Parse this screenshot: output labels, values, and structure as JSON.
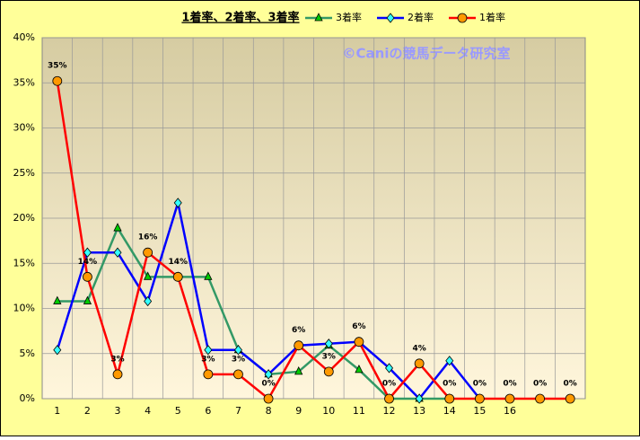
{
  "chart_data": {
    "type": "line",
    "title": "1着率、2着率、3着率",
    "watermark": "©Caniの競馬データ研究室",
    "categories": [
      "1",
      "2",
      "3",
      "4",
      "5",
      "6",
      "7",
      "8",
      "9",
      "10",
      "11",
      "12",
      "13",
      "14",
      "15",
      "16",
      null,
      null
    ],
    "series": [
      {
        "name": "3着率",
        "color": "#339966",
        "marker_color": "#00cc00",
        "marker": "triangle",
        "values": [
          10.8,
          10.8,
          18.9,
          13.5,
          13.5,
          13.5,
          5.4,
          2.7,
          3.0,
          5.9,
          3.2,
          0,
          0,
          0,
          null,
          null,
          null,
          null
        ]
      },
      {
        "name": "2着率",
        "color": "#0000ff",
        "marker_color": "#33ffff",
        "marker": "diamond",
        "values": [
          5.4,
          16.2,
          16.2,
          10.8,
          21.7,
          5.4,
          5.4,
          2.7,
          5.9,
          6.1,
          6.3,
          3.4,
          0,
          4.2,
          0,
          null,
          null,
          null
        ]
      },
      {
        "name": "1着率",
        "color": "#ff0000",
        "marker_color": "#ff9900",
        "marker": "circle",
        "values": [
          35.2,
          13.5,
          2.7,
          16.2,
          13.5,
          2.7,
          2.7,
          0,
          5.9,
          3.0,
          6.3,
          0,
          3.9,
          0,
          0,
          0,
          0,
          0
        ],
        "value_labels": [
          "35%",
          "14%",
          "3%",
          "16%",
          "14%",
          "3%",
          "3%",
          "0%",
          "6%",
          "3%",
          "6%",
          "0%",
          "4%",
          "0%",
          "0%",
          "0%",
          "0%",
          "0%"
        ]
      }
    ],
    "ylim": [
      0,
      40
    ],
    "yticks": [
      {
        "value": 0,
        "label": "0%"
      },
      {
        "value": 5,
        "label": "5%"
      },
      {
        "value": 10,
        "label": "10%"
      },
      {
        "value": 15,
        "label": "15%"
      },
      {
        "value": 20,
        "label": "20%"
      },
      {
        "value": 25,
        "label": "25%"
      },
      {
        "value": 30,
        "label": "30%"
      },
      {
        "value": 35,
        "label": "35%"
      },
      {
        "value": 40,
        "label": "40%"
      }
    ],
    "grid": true
  }
}
